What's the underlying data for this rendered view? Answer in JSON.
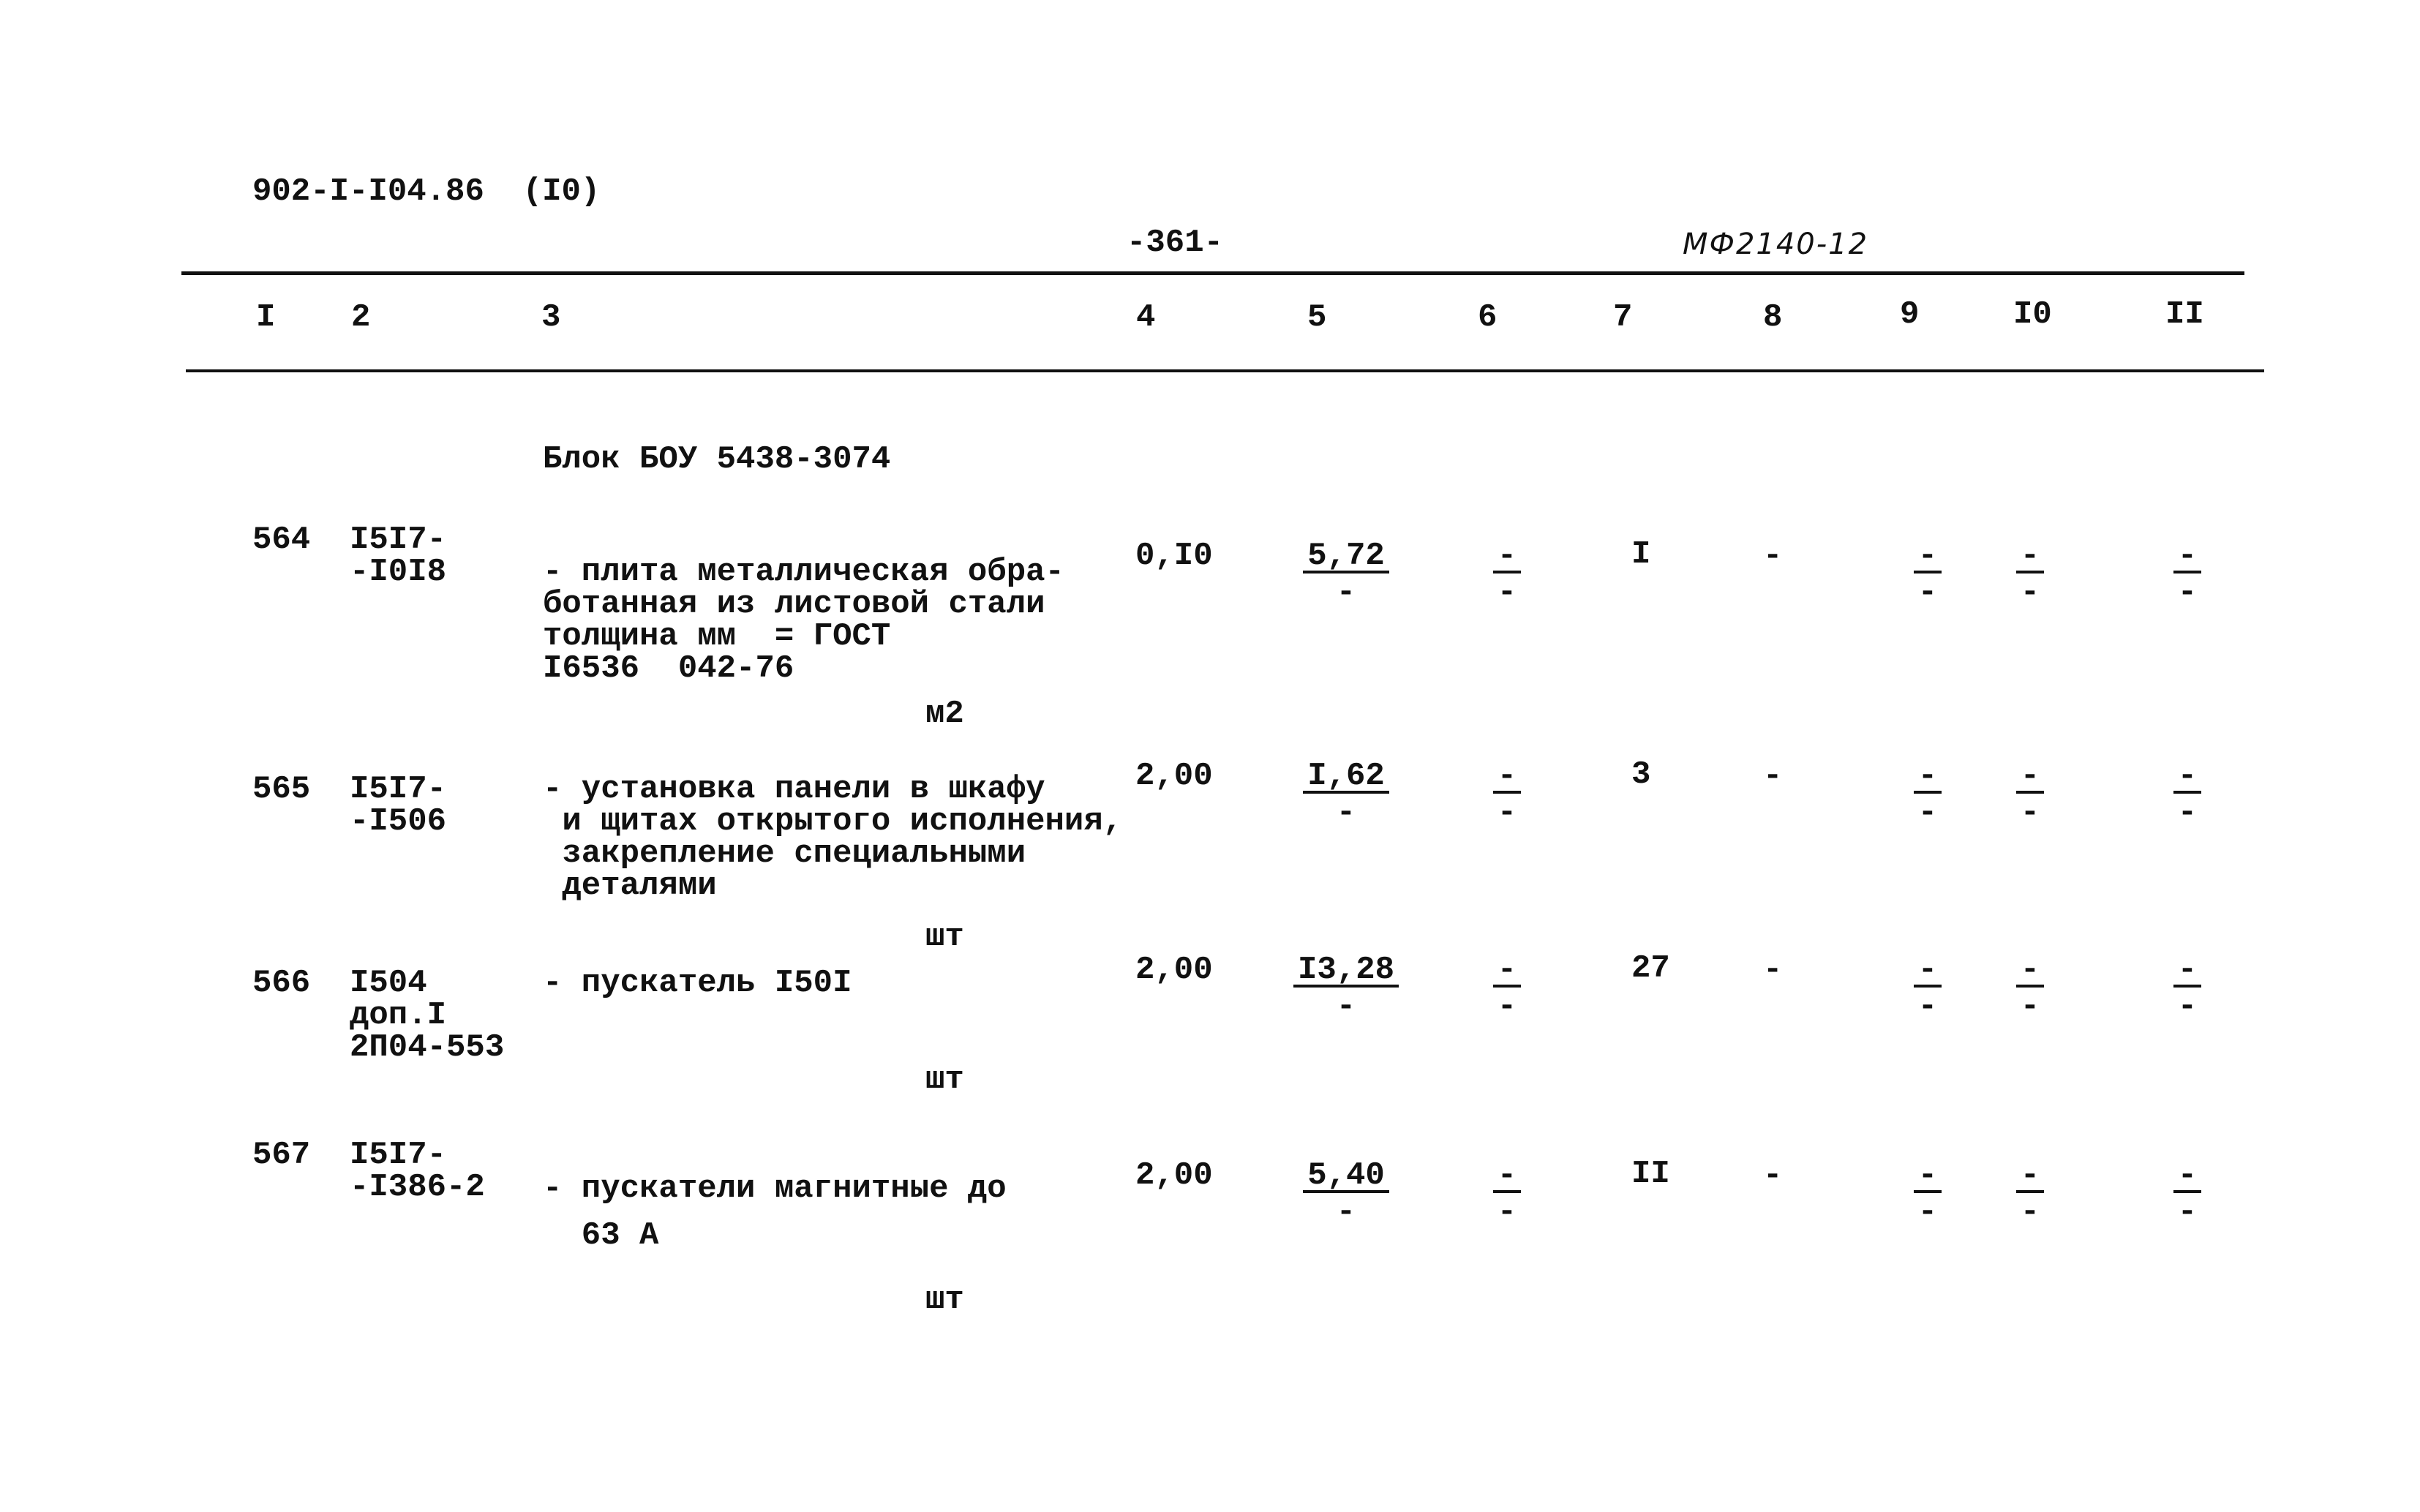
{
  "header": {
    "doc_code": "902-I-I04.86  (I0)",
    "page": "-361-",
    "stamp": "МФ2140-12"
  },
  "columns": [
    "I",
    "2",
    "3",
    "4",
    "5",
    "6",
    "7",
    "8",
    "9",
    "I0",
    "II"
  ],
  "block_title": "Блок БОУ 5438-3074",
  "rows": [
    {
      "num": "564",
      "code": [
        "I5I7-",
        "-I0I8"
      ],
      "desc": [
        "- плита металлическая обра-",
        "ботанная из листовой стали",
        "толщина мм  = ГОСТ",
        "I6536  042-76"
      ],
      "unit": "м2",
      "qty": "0,I0",
      "c5": {
        "top": "5,72",
        "bottom": "-"
      },
      "c6": {
        "top": "-",
        "bottom": "-"
      },
      "c7": "I",
      "c8": "-",
      "c9": {
        "top": "-",
        "bottom": "-"
      },
      "c10": {
        "top": "-",
        "bottom": "-"
      },
      "c11": {
        "top": "-",
        "bottom": "-"
      }
    },
    {
      "num": "565",
      "code": [
        "I5I7-",
        "-I506"
      ],
      "desc": [
        "- установка панели в шкафу",
        " и щитах открытого исполнения,",
        " закрепление специальными",
        " деталями"
      ],
      "unit": "шт",
      "qty": "2,00",
      "c5": {
        "top": "I,62",
        "bottom": "-"
      },
      "c6": {
        "top": "-",
        "bottom": "-"
      },
      "c7": "3",
      "c8": "-",
      "c9": {
        "top": "-",
        "bottom": "-"
      },
      "c10": {
        "top": "-",
        "bottom": "-"
      },
      "c11": {
        "top": "-",
        "bottom": "-"
      }
    },
    {
      "num": "566",
      "code": [
        "I504",
        "доп.I",
        "2П04-553"
      ],
      "desc": [
        "- пускатель I50I"
      ],
      "unit": "шт",
      "qty": "2,00",
      "c5": {
        "top": "I3,28",
        "bottom": "-"
      },
      "c6": {
        "top": "-",
        "bottom": "-"
      },
      "c7": "27",
      "c8": "-",
      "c9": {
        "top": "-",
        "bottom": "-"
      },
      "c10": {
        "top": "-",
        "bottom": "-"
      },
      "c11": {
        "top": "-",
        "bottom": "-"
      }
    },
    {
      "num": "567",
      "code": [
        "I5I7-",
        "-I386-2"
      ],
      "desc": [
        "- пускатели магнитные до",
        "  63 А"
      ],
      "unit": "шт",
      "qty": "2,00",
      "c5": {
        "top": "5,40",
        "bottom": "-"
      },
      "c6": {
        "top": "-",
        "bottom": "-"
      },
      "c7": "II",
      "c8": "-",
      "c9": {
        "top": "-",
        "bottom": "-"
      },
      "c10": {
        "top": "-",
        "bottom": "-"
      },
      "c11": {
        "top": "-",
        "bottom": "-"
      }
    }
  ]
}
